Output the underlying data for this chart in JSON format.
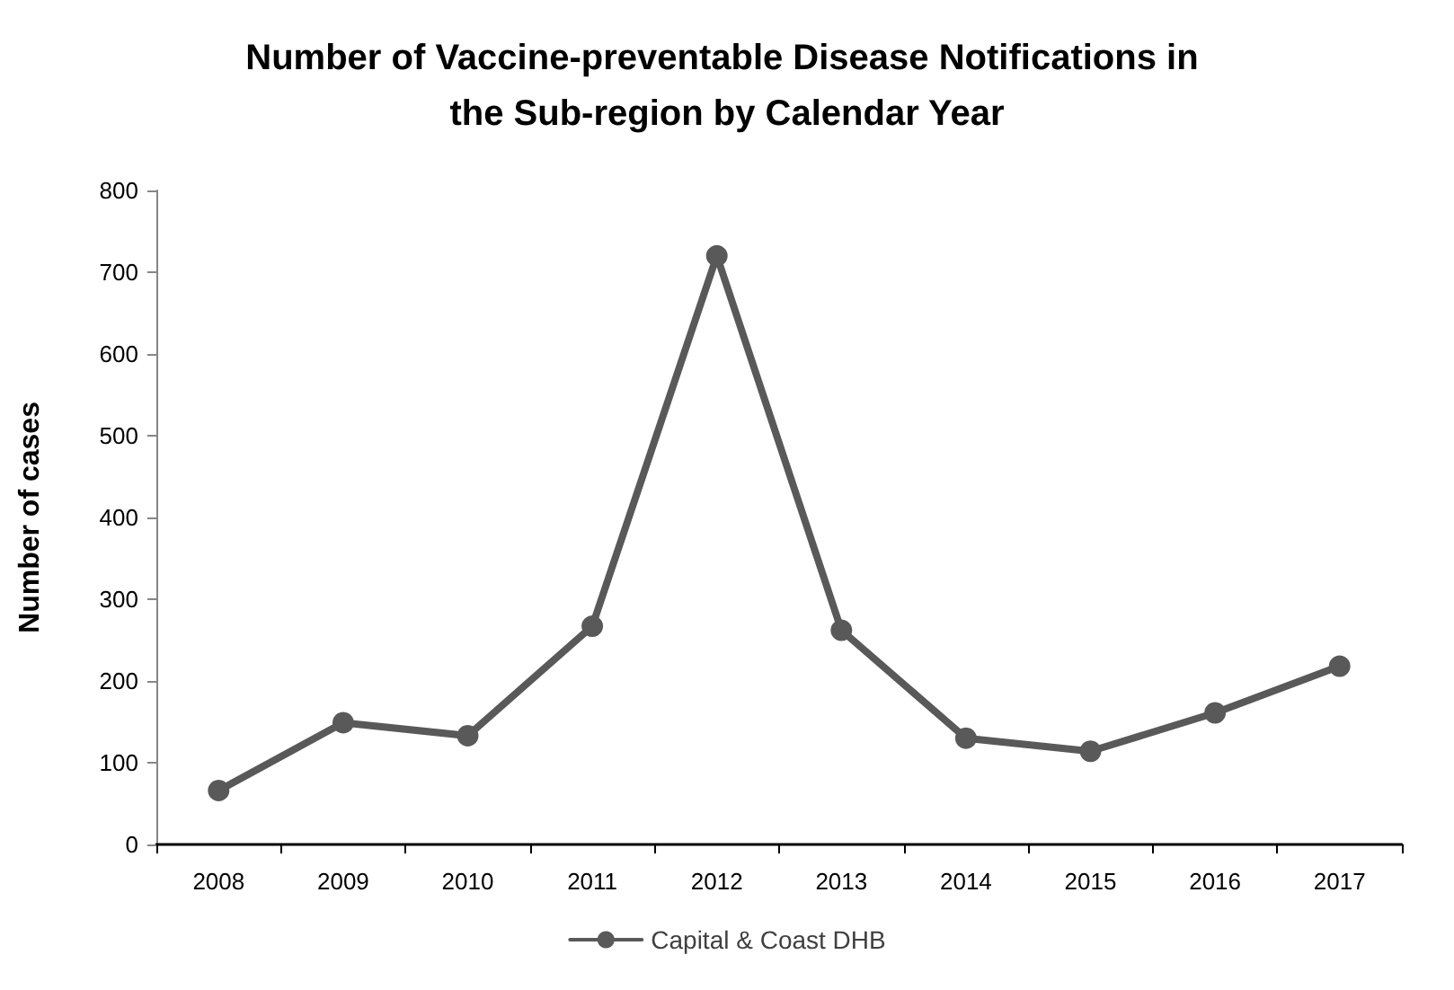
{
  "chart_data": {
    "type": "line",
    "title": "Number of Vaccine-preventable Disease Notifications in the Sub-region by Calendar Year",
    "ylabel": "Number of cases",
    "categories": [
      "2008",
      "2009",
      "2010",
      "2011",
      "2012",
      "2013",
      "2014",
      "2015",
      "2016",
      "2017"
    ],
    "series": [
      {
        "name": "Capital & Coast DHB",
        "color": "#595959",
        "values": [
          66,
          149,
          133,
          267,
          720,
          262,
          130,
          114,
          161,
          218
        ]
      }
    ],
    "ylim": [
      0,
      800
    ],
    "yticks": [
      0,
      100,
      200,
      300,
      400,
      500,
      600,
      700,
      800
    ],
    "grid": false,
    "legend": "bottom",
    "marker": "circle",
    "line_style": "solid"
  }
}
